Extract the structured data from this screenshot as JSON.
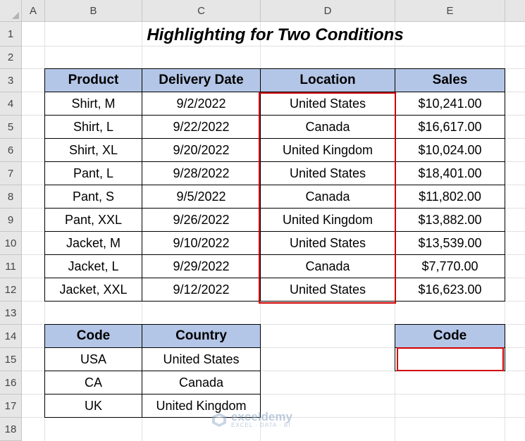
{
  "columns": [
    "A",
    "B",
    "C",
    "D",
    "E"
  ],
  "rows": [
    "1",
    "2",
    "3",
    "4",
    "5",
    "6",
    "7",
    "8",
    "9",
    "10",
    "11",
    "12",
    "13",
    "14",
    "15",
    "16",
    "17",
    "18"
  ],
  "title": "Highlighting for Two Conditions",
  "main_table": {
    "headers": [
      "Product",
      "Delivery Date",
      "Location",
      "Sales"
    ],
    "rows": [
      [
        "Shirt, M",
        "9/2/2022",
        "United States",
        "$10,241.00"
      ],
      [
        "Shirt, L",
        "9/22/2022",
        "Canada",
        "$16,617.00"
      ],
      [
        "Shirt, XL",
        "9/20/2022",
        "United Kingdom",
        "$10,024.00"
      ],
      [
        "Pant, L",
        "9/28/2022",
        "United States",
        "$18,401.00"
      ],
      [
        "Pant, S",
        "9/5/2022",
        "Canada",
        "$11,802.00"
      ],
      [
        "Pant, XXL",
        "9/26/2022",
        "United Kingdom",
        "$13,882.00"
      ],
      [
        "Jacket, M",
        "9/10/2022",
        "United States",
        "$13,539.00"
      ],
      [
        "Jacket, L",
        "9/29/2022",
        "Canada",
        "$7,770.00"
      ],
      [
        "Jacket, XXL",
        "9/12/2022",
        "United States",
        "$16,623.00"
      ]
    ]
  },
  "code_table": {
    "headers": [
      "Code",
      "Country"
    ],
    "rows": [
      [
        "USA",
        "United States"
      ],
      [
        "CA",
        "Canada"
      ],
      [
        "UK",
        "United Kingdom"
      ]
    ]
  },
  "input_box": {
    "header": "Code",
    "value": ""
  },
  "watermark": {
    "name": "exceldemy",
    "tagline": "EXCEL · DATA · BI"
  },
  "colors": {
    "header_fill": "#b4c6e7",
    "highlight_border": "#d00000"
  }
}
